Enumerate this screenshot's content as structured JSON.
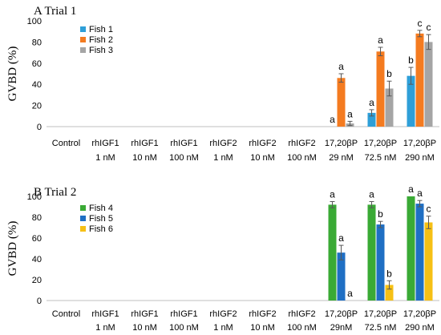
{
  "chart_data": [
    {
      "type": "bar",
      "title": "A Trial 1",
      "ylabel": "GVBD (%)",
      "ylim": [
        0,
        100
      ],
      "yticks": [
        0,
        20,
        40,
        60,
        80,
        100
      ],
      "categories": [
        [
          "Control",
          ""
        ],
        [
          "rhIGF1",
          "1 nM"
        ],
        [
          "rhIGF1",
          "10 nM"
        ],
        [
          "rhIGF1",
          "100 nM"
        ],
        [
          "rhIGF2",
          "1 nM"
        ],
        [
          "rhIGF2",
          "10 nM"
        ],
        [
          "rhIGF2",
          "100 nM"
        ],
        [
          "17,20βP",
          "29 nM"
        ],
        [
          "17,20βP",
          "72.5 nM"
        ],
        [
          "17,20βP",
          "290 nM"
        ]
      ],
      "legend_position": "top-left",
      "series": [
        {
          "name": "Fish 1",
          "color": "#2e9fd8",
          "values": [
            0,
            0,
            0,
            0,
            0,
            0,
            0,
            0,
            13,
            48
          ],
          "errors": [
            0,
            0,
            0,
            0,
            0,
            0,
            0,
            0,
            3,
            8
          ]
        },
        {
          "name": "Fish 2",
          "color": "#f47b20",
          "values": [
            0,
            0,
            0,
            0,
            0,
            0,
            0,
            46,
            71,
            88
          ],
          "errors": [
            0,
            0,
            0,
            0,
            0,
            0,
            0,
            4,
            4,
            3
          ]
        },
        {
          "name": "Fish 3",
          "color": "#a5a5a5",
          "values": [
            0,
            0,
            0,
            0,
            0,
            0,
            0,
            3,
            36,
            80
          ],
          "errors": [
            0,
            0,
            0,
            0,
            0,
            0,
            0,
            2,
            7,
            7
          ]
        }
      ],
      "annotations": [
        {
          "category": 7,
          "series": 0,
          "text": "a"
        },
        {
          "category": 7,
          "series": 1,
          "text": "a"
        },
        {
          "category": 7,
          "series": 2,
          "text": "a"
        },
        {
          "category": 8,
          "series": 0,
          "text": "a"
        },
        {
          "category": 8,
          "series": 1,
          "text": "a"
        },
        {
          "category": 8,
          "series": 2,
          "text": "b"
        },
        {
          "category": 9,
          "series": 0,
          "text": "b"
        },
        {
          "category": 9,
          "series": 1,
          "text": "c"
        },
        {
          "category": 9,
          "series": 2,
          "text": "c"
        }
      ]
    },
    {
      "type": "bar",
      "title": "B Trial 2",
      "ylabel": "GVBD (%)",
      "ylim": [
        0,
        100
      ],
      "yticks": [
        0,
        20,
        40,
        60,
        80,
        100
      ],
      "categories": [
        [
          "Control",
          ""
        ],
        [
          "rhIGF1",
          "1 nM"
        ],
        [
          "rhIGF1",
          "10 nM"
        ],
        [
          "rhIGF1",
          "100 nM"
        ],
        [
          "rhIGF2",
          "1 nM"
        ],
        [
          "rhIGF2",
          "10 nM"
        ],
        [
          "rhIGF2",
          "100 nM"
        ],
        [
          "17,20βP",
          "29nM"
        ],
        [
          "17,20βP",
          "72.5 nM"
        ],
        [
          "17,20βP",
          "290 nM"
        ]
      ],
      "legend_position": "top-left",
      "series": [
        {
          "name": "Fish 4",
          "color": "#3aaa35",
          "values": [
            0,
            0,
            0,
            0,
            0,
            0,
            0,
            92,
            92,
            100
          ],
          "errors": [
            0,
            0,
            0,
            0,
            0,
            0,
            0,
            3,
            3,
            0
          ]
        },
        {
          "name": "Fish 5",
          "color": "#1f6fc4",
          "values": [
            0,
            0,
            0,
            0,
            0,
            0,
            0,
            46,
            73,
            93
          ],
          "errors": [
            0,
            0,
            0,
            0,
            0,
            0,
            0,
            7,
            3,
            3
          ]
        },
        {
          "name": "Fish 6",
          "color": "#f6c015",
          "values": [
            0,
            0,
            0,
            0,
            0,
            0,
            0,
            0,
            15,
            75
          ],
          "errors": [
            0,
            0,
            0,
            0,
            0,
            0,
            0,
            0,
            4,
            6
          ]
        }
      ],
      "annotations": [
        {
          "category": 7,
          "series": 0,
          "text": "a"
        },
        {
          "category": 7,
          "series": 1,
          "text": "a"
        },
        {
          "category": 7,
          "series": 2,
          "text": "a"
        },
        {
          "category": 8,
          "series": 0,
          "text": "a"
        },
        {
          "category": 8,
          "series": 1,
          "text": "b"
        },
        {
          "category": 8,
          "series": 2,
          "text": "b"
        },
        {
          "category": 9,
          "series": 0,
          "text": "a"
        },
        {
          "category": 9,
          "series": 1,
          "text": "a"
        },
        {
          "category": 9,
          "series": 2,
          "text": "c"
        }
      ]
    }
  ]
}
